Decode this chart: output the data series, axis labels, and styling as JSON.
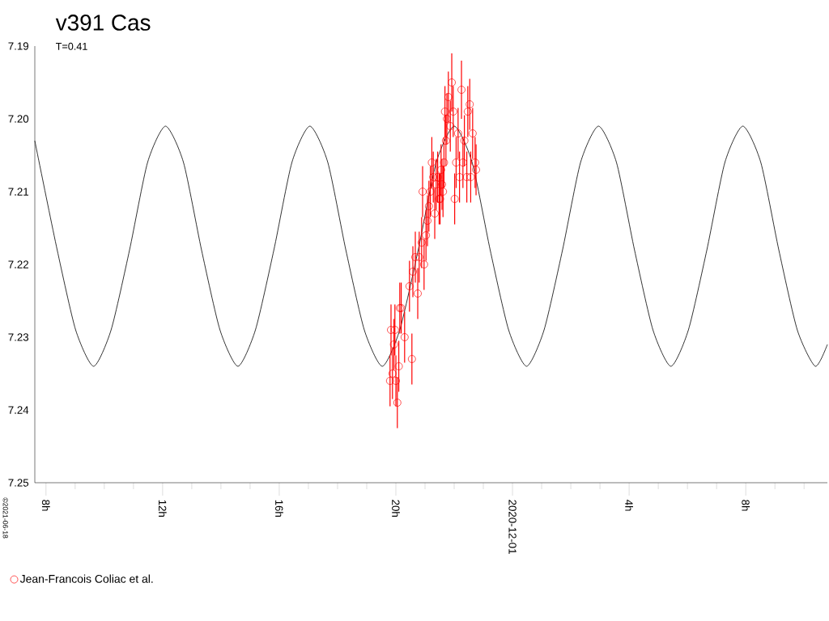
{
  "chart_data": {
    "type": "scatter",
    "title": "v391 Cas",
    "subtitle": "T=0.41",
    "annotations": [
      "©2021-06-18"
    ],
    "xlim": [
      "2020-11-30T07:37",
      "2020-12-01T10:48"
    ],
    "ylim": [
      7.25,
      7.19
    ],
    "xticks": [
      {
        "value": "2020-11-30T08:00",
        "label": "8h"
      },
      {
        "value": "2020-11-30T09:00",
        "label": null
      },
      {
        "value": "2020-11-30T10:00",
        "label": null
      },
      {
        "value": "2020-11-30T11:00",
        "label": null
      },
      {
        "value": "2020-11-30T12:00",
        "label": "12h"
      },
      {
        "value": "2020-11-30T13:00",
        "label": null
      },
      {
        "value": "2020-11-30T14:00",
        "label": null
      },
      {
        "value": "2020-11-30T15:00",
        "label": null
      },
      {
        "value": "2020-11-30T16:00",
        "label": "16h"
      },
      {
        "value": "2020-11-30T17:00",
        "label": null
      },
      {
        "value": "2020-11-30T18:00",
        "label": null
      },
      {
        "value": "2020-11-30T19:00",
        "label": null
      },
      {
        "value": "2020-11-30T20:00",
        "label": "20h"
      },
      {
        "value": "2020-11-30T21:00",
        "label": null
      },
      {
        "value": "2020-11-30T22:00",
        "label": null
      },
      {
        "value": "2020-11-30T23:00",
        "label": null
      },
      {
        "value": "2020-12-01T00:00",
        "label": "2020-12-01"
      },
      {
        "value": "2020-12-01T01:00",
        "label": null
      },
      {
        "value": "2020-12-01T02:00",
        "label": null
      },
      {
        "value": "2020-12-01T03:00",
        "label": null
      },
      {
        "value": "2020-12-01T04:00",
        "label": "4h"
      },
      {
        "value": "2020-12-01T05:00",
        "label": null
      },
      {
        "value": "2020-12-01T06:00",
        "label": null
      },
      {
        "value": "2020-12-01T07:00",
        "label": null
      },
      {
        "value": "2020-12-01T08:00",
        "label": "8h"
      },
      {
        "value": "2020-12-01T09:00",
        "label": null
      },
      {
        "value": "2020-12-01T10:00",
        "label": null
      }
    ],
    "yticks": [
      7.19,
      {
        "value": 7.2,
        "label": "7.20"
      },
      7.21,
      7.22,
      7.23,
      7.24,
      7.25
    ],
    "legend": "bottom left",
    "line_style": "solid",
    "grid": false,
    "series": [
      {
        "type": "line",
        "marker": "none",
        "color": "#000000",
        "x": [
          "2020-11-30T07:37",
          "2020-11-30T07:46",
          "2020-11-30T08:23",
          "2020-11-30T09:01",
          "2020-11-30T09:38",
          "2020-11-30T10:14",
          "2020-11-30T10:52",
          "2020-11-30T11:29",
          "2020-11-30T12:06",
          "2020-11-30T12:43",
          "2020-11-30T13:20",
          "2020-11-30T13:58",
          "2020-11-30T14:35",
          "2020-11-30T15:11",
          "2020-11-30T15:49",
          "2020-11-30T16:26",
          "2020-11-30T17:03",
          "2020-11-30T17:40",
          "2020-11-30T18:17",
          "2020-11-30T18:55",
          "2020-11-30T19:32",
          "2020-11-30T20:08",
          "2020-11-30T20:46",
          "2020-11-30T21:23",
          "2020-11-30T22:00",
          "2020-11-30T22:37",
          "2020-11-30T23:14",
          "2020-11-30T23:52",
          "2020-12-01T00:29",
          "2020-12-01T01:05",
          "2020-12-01T01:43",
          "2020-12-01T02:20",
          "2020-12-01T02:57",
          "2020-12-01T03:34",
          "2020-12-01T04:11",
          "2020-12-01T04:49",
          "2020-12-01T05:26",
          "2020-12-01T06:02",
          "2020-12-01T06:40",
          "2020-12-01T07:17",
          "2020-12-01T07:54",
          "2020-12-01T08:31",
          "2020-12-01T09:08",
          "2020-12-01T09:46",
          "2020-12-01T10:23",
          "2020-12-01T10:48"
        ],
        "values": [
          7.203,
          7.206,
          7.218,
          7.229,
          7.234,
          7.229,
          7.218,
          7.206,
          7.201,
          7.206,
          7.218,
          7.229,
          7.234,
          7.229,
          7.218,
          7.206,
          7.201,
          7.206,
          7.218,
          7.229,
          7.234,
          7.229,
          7.218,
          7.206,
          7.201,
          7.206,
          7.218,
          7.229,
          7.234,
          7.229,
          7.218,
          7.206,
          7.201,
          7.206,
          7.218,
          7.229,
          7.234,
          7.229,
          7.218,
          7.206,
          7.201,
          7.206,
          7.218,
          7.229,
          7.234,
          7.231
        ]
      },
      {
        "name": "Jean-Francois Coliac et al.",
        "marker": "circle",
        "color": "#ff0000",
        "x": [
          "2020-11-30T19:48",
          "2020-11-30T19:50",
          "2020-11-30T19:53",
          "2020-11-30T19:56",
          "2020-11-30T19:58",
          "2020-11-30T20:00",
          "2020-11-30T20:03",
          "2020-11-30T20:06",
          "2020-11-30T20:08",
          "2020-11-30T20:11",
          "2020-11-30T20:18",
          "2020-11-30T20:28",
          "2020-11-30T20:33",
          "2020-11-30T20:35",
          "2020-11-30T20:40",
          "2020-11-30T20:45",
          "2020-11-30T20:48",
          "2020-11-30T20:53",
          "2020-11-30T20:55",
          "2020-11-30T20:58",
          "2020-11-30T21:02",
          "2020-11-30T21:05",
          "2020-11-30T21:08",
          "2020-11-30T21:11",
          "2020-11-30T21:14",
          "2020-11-30T21:17",
          "2020-11-30T21:20",
          "2020-11-30T21:23",
          "2020-11-30T21:26",
          "2020-11-30T21:29",
          "2020-11-30T21:31",
          "2020-11-30T21:33",
          "2020-11-30T21:35",
          "2020-11-30T21:37",
          "2020-11-30T21:39",
          "2020-11-30T21:41",
          "2020-11-30T21:43",
          "2020-11-30T21:45",
          "2020-11-30T21:48",
          "2020-11-30T21:55",
          "2020-11-30T21:52",
          "2020-11-30T21:58",
          "2020-11-30T22:01",
          "2020-11-30T22:04",
          "2020-11-30T22:08",
          "2020-11-30T22:11",
          "2020-11-30T22:15",
          "2020-11-30T22:18",
          "2020-11-30T22:21",
          "2020-11-30T22:26",
          "2020-11-30T22:28",
          "2020-11-30T22:32",
          "2020-11-30T22:34",
          "2020-11-30T22:38",
          "2020-11-30T22:43",
          "2020-11-30T22:45"
        ],
        "values": [
          7.236,
          7.229,
          7.235,
          7.231,
          7.229,
          7.236,
          7.239,
          7.234,
          7.226,
          7.226,
          7.23,
          7.223,
          7.233,
          7.221,
          7.219,
          7.224,
          7.219,
          7.217,
          7.21,
          7.22,
          7.216,
          7.214,
          7.212,
          7.21,
          7.206,
          7.208,
          7.213,
          7.209,
          7.208,
          7.211,
          7.211,
          7.207,
          7.209,
          7.21,
          7.206,
          7.199,
          7.203,
          7.2,
          7.197,
          7.195,
          7.201,
          7.199,
          7.211,
          7.206,
          7.202,
          7.208,
          7.196,
          7.206,
          7.203,
          7.208,
          7.199,
          7.198,
          7.208,
          7.202,
          7.206,
          7.207
        ],
        "errors": [
          0.0035,
          0.0035,
          0.0035,
          0.0035,
          0.0035,
          0.0035,
          0.0035,
          0.0035,
          0.0035,
          0.0035,
          0.0035,
          0.0035,
          0.0035,
          0.0035,
          0.0035,
          0.0035,
          0.0035,
          0.0035,
          0.0035,
          0.0035,
          0.0035,
          0.0035,
          0.0035,
          0.0035,
          0.0035,
          0.0035,
          0.0035,
          0.0035,
          0.0035,
          0.0035,
          0.0035,
          0.0035,
          0.0035,
          0.0035,
          0.0035,
          0.0035,
          0.0035,
          0.0035,
          0.0035,
          0.004,
          0.0035,
          0.0035,
          0.0035,
          0.0035,
          0.0035,
          0.0035,
          0.004,
          0.0035,
          0.0035,
          0.0035,
          0.0035,
          0.0035,
          0.0035,
          0.0035,
          0.0035,
          0.0035
        ]
      }
    ]
  }
}
